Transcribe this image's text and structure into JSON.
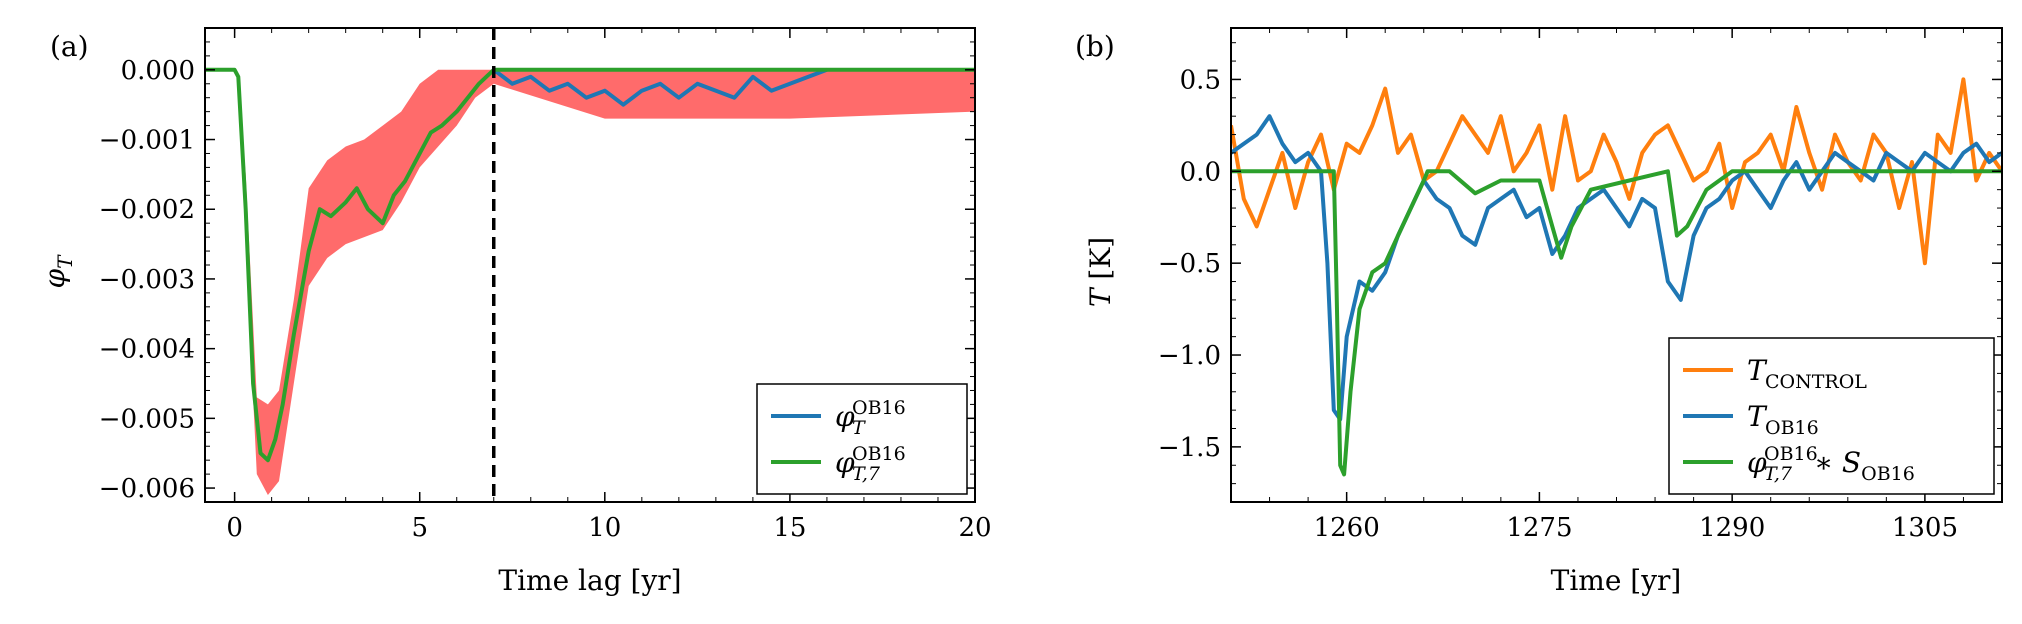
{
  "chart_data": [
    {
      "id": "a",
      "panel_label": "(a)",
      "type": "line",
      "xlabel": "Time lag [yr]",
      "ylabel": "φT",
      "xlim": [
        -0.8,
        20
      ],
      "ylim": [
        -0.0062,
        0.0006
      ],
      "xticks": [
        0,
        5,
        10,
        15,
        20
      ],
      "xtick_labels": [
        "0",
        "5",
        "10",
        "15",
        "20"
      ],
      "yticks": [
        0.0,
        -0.001,
        -0.002,
        -0.003,
        -0.004,
        -0.005,
        -0.006
      ],
      "ytick_labels": [
        "0.000",
        "−0.001",
        "−0.002",
        "−0.003",
        "−0.004",
        "−0.005",
        "−0.006"
      ],
      "vline": 7.0,
      "band": {
        "color": "#ff6b6b",
        "x": [
          0,
          0.1,
          0.3,
          0.6,
          0.9,
          1.2,
          1.6,
          2.0,
          2.5,
          3.0,
          3.5,
          4.0,
          4.5,
          5.0,
          5.5,
          6.0,
          6.5,
          7.0,
          10,
          15,
          20
        ],
        "lower": [
          0.0,
          -0.0002,
          -0.0025,
          -0.0058,
          -0.0061,
          -0.0059,
          -0.0045,
          -0.0031,
          -0.0027,
          -0.0025,
          -0.0024,
          -0.0023,
          -0.0019,
          -0.0014,
          -0.0011,
          -0.0008,
          -0.0004,
          -0.0002,
          -0.0007,
          -0.0007,
          -0.0006
        ],
        "upper": [
          0.0,
          -0.0001,
          -0.0015,
          -0.0047,
          -0.0048,
          -0.0046,
          -0.0033,
          -0.0017,
          -0.0013,
          -0.0011,
          -0.001,
          -0.0008,
          -0.0006,
          -0.0002,
          0.0,
          0.0,
          0.0,
          0.0,
          0.0,
          0.0,
          0.0
        ]
      },
      "series": [
        {
          "name": "φT^OB16",
          "color": "#1f77b4",
          "x": [
            7.0,
            7.5,
            8.0,
            8.5,
            9.0,
            9.5,
            10.0,
            10.5,
            11.0,
            11.5,
            12.0,
            12.5,
            13.0,
            13.5,
            14.0,
            14.5,
            15.0,
            15.5,
            16.0
          ],
          "y": [
            0.0,
            -0.0002,
            -0.0001,
            -0.0003,
            -0.0002,
            -0.0004,
            -0.0003,
            -0.0005,
            -0.0003,
            -0.0002,
            -0.0004,
            -0.0002,
            -0.0003,
            -0.0004,
            -0.0001,
            -0.0003,
            -0.0002,
            -0.0001,
            0.0
          ]
        },
        {
          "name": "φT,7^OB16",
          "color": "#2ca02c",
          "x": [
            -0.8,
            0,
            0.1,
            0.3,
            0.5,
            0.7,
            0.9,
            1.1,
            1.3,
            1.6,
            2.0,
            2.3,
            2.6,
            3.0,
            3.3,
            3.6,
            4.0,
            4.3,
            4.6,
            5.0,
            5.3,
            5.6,
            6.0,
            6.3,
            6.6,
            6.8,
            7.0,
            20
          ],
          "y": [
            0.0,
            0.0,
            -0.0001,
            -0.002,
            -0.0045,
            -0.0055,
            -0.0056,
            -0.0053,
            -0.0048,
            -0.0038,
            -0.0026,
            -0.002,
            -0.0021,
            -0.0019,
            -0.0017,
            -0.002,
            -0.0022,
            -0.0018,
            -0.0016,
            -0.0012,
            -0.0009,
            -0.0008,
            -0.0006,
            -0.0004,
            -0.0002,
            -0.0001,
            0.0,
            0.0
          ]
        }
      ],
      "legend": {
        "location": "lower right",
        "entries": [
          {
            "base": "φ",
            "sup": "OB16",
            "sub": "T",
            "color": "#1f77b4"
          },
          {
            "base": "φ",
            "sup": "OB16",
            "sub": "T,7",
            "color": "#2ca02c"
          }
        ]
      }
    },
    {
      "id": "b",
      "panel_label": "(b)",
      "type": "line",
      "xlabel": "Time [yr]",
      "ylabel": "T [K]",
      "xlim": [
        1251,
        1311
      ],
      "ylim": [
        -1.8,
        0.78
      ],
      "xticks": [
        1260,
        1275,
        1290,
        1305
      ],
      "xtick_labels": [
        "1260",
        "1275",
        "1290",
        "1305"
      ],
      "yticks": [
        0.5,
        0.0,
        -0.5,
        -1.0,
        -1.5
      ],
      "ytick_labels": [
        "0.5",
        "0.0",
        "−0.5",
        "−1.0",
        "−1.5"
      ],
      "series": [
        {
          "name": "T_CONTROL",
          "color": "#ff7f0e",
          "x": [
            1251,
            1252,
            1253,
            1254,
            1255,
            1256,
            1257,
            1258,
            1259,
            1260,
            1261,
            1262,
            1263,
            1264,
            1265,
            1266,
            1267,
            1268,
            1269,
            1270,
            1271,
            1272,
            1273,
            1274,
            1275,
            1276,
            1277,
            1278,
            1279,
            1280,
            1281,
            1282,
            1283,
            1284,
            1285,
            1286,
            1287,
            1288,
            1289,
            1290,
            1291,
            1292,
            1293,
            1294,
            1295,
            1296,
            1297,
            1298,
            1299,
            1300,
            1301,
            1302,
            1303,
            1304,
            1305,
            1306,
            1307,
            1308,
            1309,
            1310,
            1311
          ],
          "y": [
            0.25,
            -0.15,
            -0.3,
            -0.1,
            0.1,
            -0.2,
            0.05,
            0.2,
            -0.1,
            0.15,
            0.1,
            0.25,
            0.45,
            0.1,
            0.2,
            -0.05,
            0.0,
            0.15,
            0.3,
            0.2,
            0.1,
            0.3,
            0.0,
            0.1,
            0.25,
            -0.1,
            0.3,
            -0.05,
            0.0,
            0.2,
            0.05,
            -0.15,
            0.1,
            0.2,
            0.25,
            0.1,
            -0.05,
            0.0,
            0.15,
            -0.2,
            0.05,
            0.1,
            0.2,
            0.0,
            0.35,
            0.1,
            -0.1,
            0.2,
            0.05,
            -0.05,
            0.2,
            0.1,
            -0.2,
            0.05,
            -0.5,
            0.2,
            0.1,
            0.5,
            -0.05,
            0.1,
            0.0
          ]
        },
        {
          "name": "T_OB16",
          "color": "#1f77b4",
          "x": [
            1251,
            1252,
            1253,
            1254,
            1255,
            1256,
            1257,
            1258,
            1258.5,
            1259,
            1259.5,
            1260,
            1261,
            1262,
            1263,
            1264,
            1265,
            1266,
            1267,
            1268,
            1269,
            1270,
            1271,
            1272,
            1273,
            1274,
            1275,
            1276,
            1277,
            1278,
            1279,
            1280,
            1281,
            1282,
            1283,
            1284,
            1285,
            1286,
            1287,
            1288,
            1289,
            1290,
            1291,
            1292,
            1293,
            1294,
            1295,
            1296,
            1297,
            1298,
            1299,
            1300,
            1301,
            1302,
            1303,
            1304,
            1305,
            1306,
            1307,
            1308,
            1309,
            1310,
            1311
          ],
          "y": [
            0.1,
            0.15,
            0.2,
            0.3,
            0.15,
            0.05,
            0.1,
            0.0,
            -0.5,
            -1.3,
            -1.35,
            -0.9,
            -0.6,
            -0.65,
            -0.55,
            -0.35,
            -0.2,
            -0.05,
            -0.15,
            -0.2,
            -0.35,
            -0.4,
            -0.2,
            -0.15,
            -0.1,
            -0.25,
            -0.2,
            -0.45,
            -0.35,
            -0.2,
            -0.15,
            -0.1,
            -0.2,
            -0.3,
            -0.15,
            -0.2,
            -0.6,
            -0.7,
            -0.35,
            -0.2,
            -0.15,
            -0.05,
            0.0,
            -0.1,
            -0.2,
            -0.05,
            0.05,
            -0.1,
            0.0,
            0.1,
            0.05,
            0.0,
            -0.05,
            0.1,
            0.05,
            0.0,
            0.1,
            0.05,
            0.0,
            0.1,
            0.15,
            0.05,
            0.1
          ]
        },
        {
          "name": "φT,7^OB16 * S_OB16",
          "color": "#2ca02c",
          "x": [
            1251,
            1259,
            1259.2,
            1259.5,
            1259.8,
            1260.3,
            1261,
            1262,
            1263,
            1264,
            1265,
            1266,
            1266.3,
            1268,
            1270,
            1272,
            1275,
            1276,
            1276.7,
            1277.5,
            1279,
            1282,
            1285,
            1285.7,
            1286.5,
            1288,
            1290,
            1311
          ],
          "y": [
            0.0,
            0.0,
            -0.6,
            -1.6,
            -1.65,
            -1.2,
            -0.75,
            -0.55,
            -0.5,
            -0.35,
            -0.2,
            -0.05,
            0.0,
            0.0,
            -0.12,
            -0.05,
            -0.05,
            -0.3,
            -0.47,
            -0.3,
            -0.1,
            -0.05,
            0.0,
            -0.35,
            -0.3,
            -0.1,
            0.0,
            0.0
          ]
        }
      ],
      "legend": {
        "location": "lower right",
        "entries": [
          {
            "base": "T",
            "sub": "CONTROL",
            "color": "#ff7f0e"
          },
          {
            "base": "T",
            "sub": "OB16",
            "color": "#1f77b4"
          },
          {
            "base": "φ",
            "sup": "OB16",
            "sub": "T,7",
            "tail": "∗ S",
            "tail_sub": "OB16",
            "color": "#2ca02c"
          }
        ]
      }
    }
  ]
}
